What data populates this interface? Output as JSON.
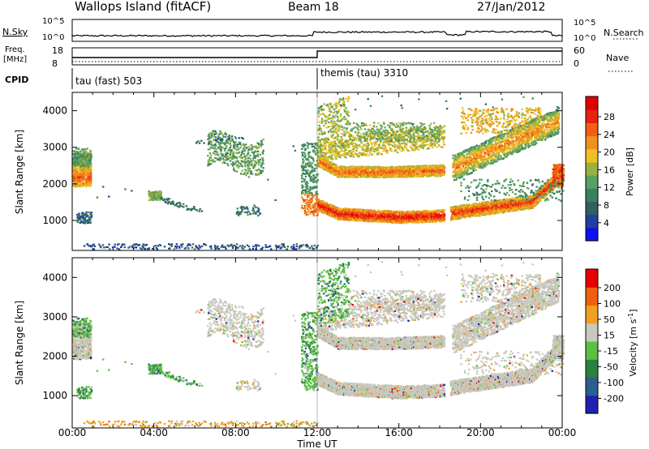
{
  "header": {
    "site": "Wallops Island (fitACF)",
    "beam": "Beam 18",
    "date": "27/Jan/2012"
  },
  "panels": {
    "nsky": {
      "label": "N.Sky",
      "right_label": "N.Search",
      "ticks_left": [
        "10^5",
        "10^0"
      ],
      "ticks_right": [
        "10^5",
        "10^0"
      ]
    },
    "freq": {
      "label_line1": "Freq.",
      "label_line2": "[MHz]",
      "right_label": "Nave",
      "ticks_left": [
        "18",
        "8"
      ],
      "ticks_right": [
        "60",
        "0"
      ]
    },
    "cpid": {
      "label": "CPID",
      "modes": [
        {
          "name": "tau (fast) 503",
          "start": "00:00"
        },
        {
          "name": "themis (tau) 3310",
          "start": "12:00"
        }
      ]
    }
  },
  "x_axis": {
    "label": "Time UT",
    "ticks": [
      "00:00",
      "04:00",
      "08:00",
      "12:00",
      "16:00",
      "20:00",
      "00:00"
    ]
  },
  "colorbars": {
    "power": {
      "label": "Power [dB]",
      "ticks": [
        "28",
        "24",
        "20",
        "16",
        "12",
        "8",
        "4"
      ],
      "colors": [
        "#1010f0",
        "#2040a0",
        "#306060",
        "#3a8060",
        "#58a060",
        "#9ab040",
        "#f0c020",
        "#f09020",
        "#f06010",
        "#e82010",
        "#e00000"
      ]
    },
    "velocity": {
      "label_main": "Velocity [m s",
      "label_sup": "-1",
      "label_end": "]",
      "ticks": [
        "200",
        "100",
        "50",
        "15",
        "-15",
        "-50",
        "-100",
        "-200"
      ],
      "colors": [
        "#2020b0",
        "#2a6090",
        "#2a8040",
        "#5ac040",
        "#c8c8c0",
        "#f0a020",
        "#f06010",
        "#e80000"
      ]
    }
  },
  "chart_data": [
    {
      "type": "heatmap",
      "title": "Power",
      "ylabel": "Slant Range [km]",
      "xlabel": "",
      "ylim": [
        180,
        4500
      ],
      "y_ticks": [
        "1000",
        "2000",
        "3000",
        "4000"
      ],
      "xlim_hours": [
        0,
        24
      ]
    },
    {
      "type": "heatmap",
      "title": "Velocity",
      "ylabel": "Slant Range [km]",
      "xlabel": "Time UT",
      "ylim": [
        180,
        4500
      ],
      "y_ticks": [
        "1000",
        "2000",
        "3000",
        "4000"
      ],
      "xlim_hours": [
        0,
        24
      ]
    }
  ]
}
